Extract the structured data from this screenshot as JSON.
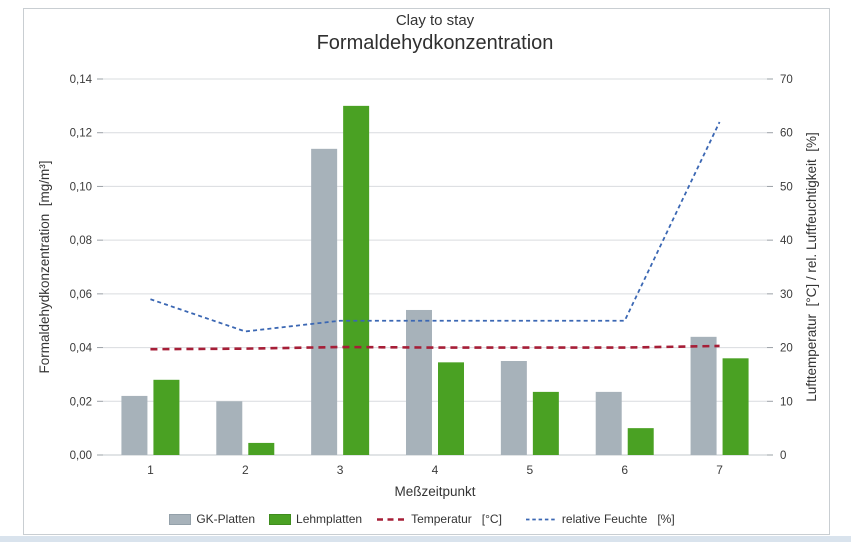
{
  "title": "Clay to stay",
  "subtitle": "Formaldehydkonzentration",
  "chart_data": {
    "type": "bar",
    "subtype": "combo-bar-line-dual-axis",
    "categories": [
      "1",
      "2",
      "3",
      "4",
      "5",
      "6",
      "7"
    ],
    "series": [
      {
        "name": "GK-Platten",
        "type": "bar",
        "axis": "left",
        "color": "#a7b2ba",
        "values": [
          0.022,
          0.02,
          0.114,
          0.054,
          0.035,
          0.0235,
          0.044
        ]
      },
      {
        "name": "Lehmplatten",
        "type": "bar",
        "axis": "left",
        "color": "#4aa123",
        "values": [
          0.028,
          0.0045,
          0.13,
          0.0345,
          0.0235,
          0.01,
          0.036
        ]
      },
      {
        "name": "Temperatur",
        "type": "dashed-line",
        "axis": "right",
        "color": "#a61e37",
        "values": [
          19.7,
          19.8,
          20.1,
          20.0,
          20.0,
          20.0,
          20.3
        ]
      },
      {
        "name": "relative Feuchte",
        "type": "dashed-line",
        "axis": "right",
        "color": "#3b67b3",
        "values": [
          29,
          23,
          25,
          25,
          25,
          25,
          62
        ]
      }
    ],
    "left_axis": {
      "label": "Formaldehydkonzentration  [mg/m³]",
      "min": 0,
      "max": 0.14,
      "step": 0.02,
      "tick_labels": [
        "0,00",
        "0,02",
        "0,04",
        "0,06",
        "0,08",
        "0,10",
        "0,12",
        "0,14"
      ]
    },
    "right_axis": {
      "label": "Lufttemperatur  [°C] / rel. Luftfeuchtigkeit  [%]",
      "min": 0,
      "max": 70,
      "step": 10,
      "tick_labels": [
        "0",
        "10",
        "20",
        "30",
        "40",
        "50",
        "60",
        "70"
      ]
    },
    "x_axis": {
      "label": "Meßzeitpunkt"
    },
    "grid": true,
    "legend_position": "bottom"
  },
  "legend": {
    "items": [
      {
        "label": "GK-Platten"
      },
      {
        "label": "Lehmplatten"
      },
      {
        "label": "Temperatur",
        "unit": "[°C]"
      },
      {
        "label": "relative Feuchte",
        "unit": "[%]"
      }
    ]
  }
}
